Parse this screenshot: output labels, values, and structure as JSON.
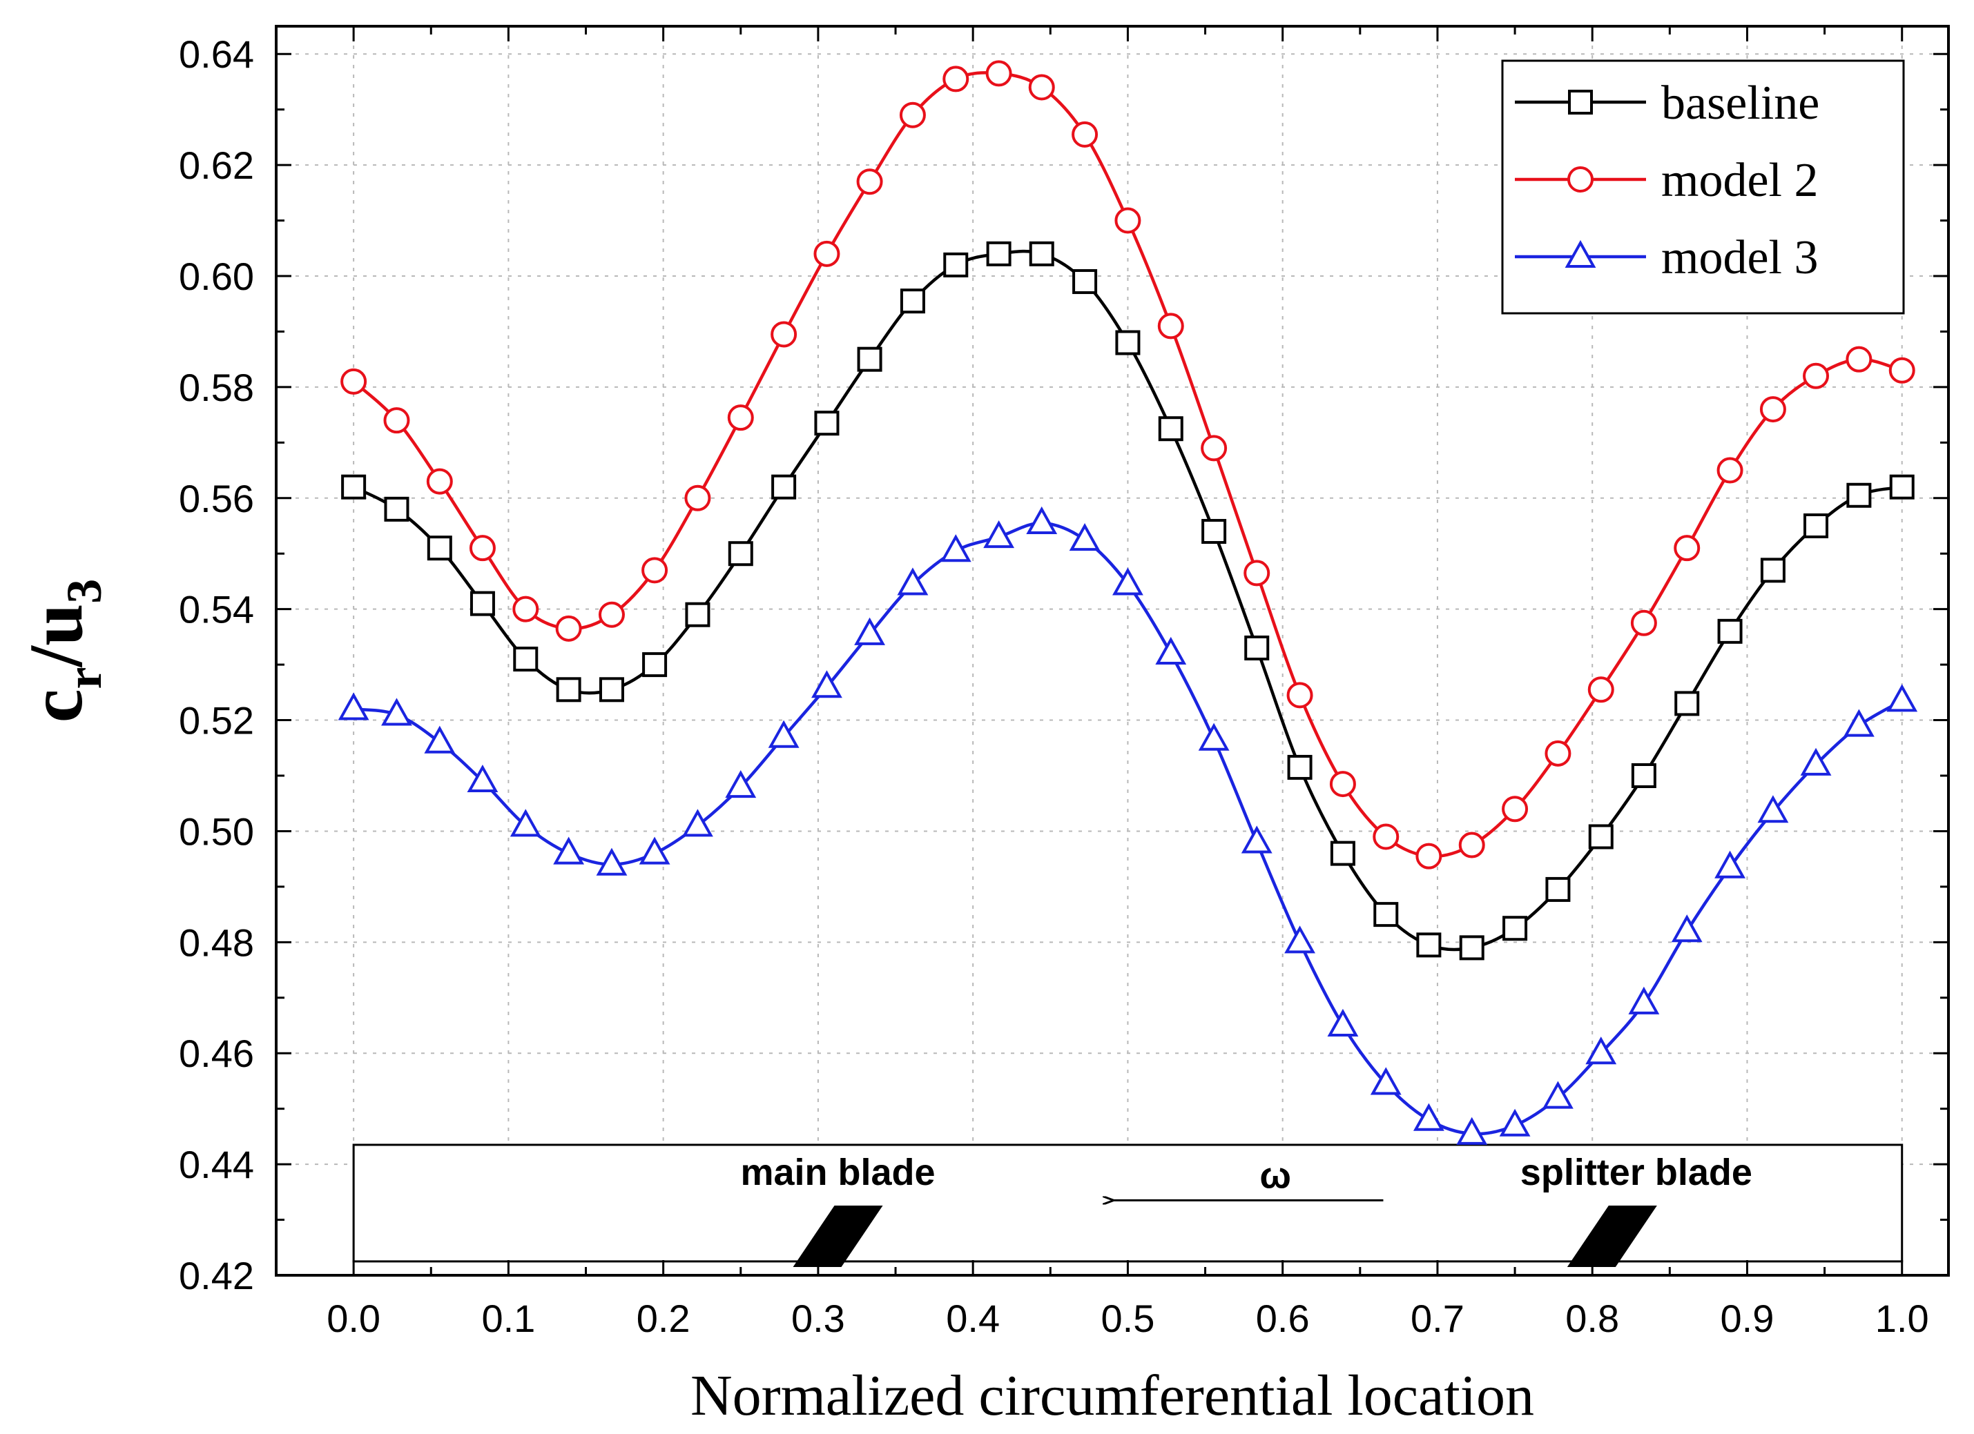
{
  "chart_data": {
    "type": "line",
    "title": "",
    "xlabel": "Normalized circumferential location",
    "ylabel": {
      "main": "c",
      "sub1": "r",
      "mid": "/u",
      "sub2": "3"
    },
    "xlim": [
      -0.05,
      1.03
    ],
    "ylim": [
      0.42,
      0.645
    ],
    "xticks": [
      "0.0",
      "0.1",
      "0.2",
      "0.3",
      "0.4",
      "0.5",
      "0.6",
      "0.7",
      "0.8",
      "0.9",
      "1.0"
    ],
    "yticks": [
      "0.42",
      "0.44",
      "0.46",
      "0.48",
      "0.50",
      "0.52",
      "0.54",
      "0.56",
      "0.58",
      "0.60",
      "0.62",
      "0.64"
    ],
    "grid": true,
    "legend_position": "top-right",
    "x": [
      0.0,
      0.0278,
      0.0556,
      0.0833,
      0.1111,
      0.1389,
      0.1667,
      0.1944,
      0.2222,
      0.25,
      0.2778,
      0.3056,
      0.3333,
      0.3611,
      0.3889,
      0.4167,
      0.4444,
      0.4722,
      0.5,
      0.5278,
      0.5556,
      0.5833,
      0.6111,
      0.6389,
      0.6667,
      0.6944,
      0.7222,
      0.75,
      0.7778,
      0.8056,
      0.8333,
      0.8611,
      0.8889,
      0.9167,
      0.9444,
      0.9722,
      1.0
    ],
    "series": [
      {
        "name": "baseline",
        "color": "#000000",
        "marker": "square",
        "values": [
          0.562,
          0.558,
          0.551,
          0.541,
          0.531,
          0.5255,
          0.5255,
          0.53,
          0.539,
          0.55,
          0.562,
          0.5735,
          0.585,
          0.5955,
          0.602,
          0.604,
          0.604,
          0.599,
          0.588,
          0.5725,
          0.554,
          0.533,
          0.5115,
          0.496,
          0.485,
          0.4795,
          0.479,
          0.4825,
          0.4895,
          0.499,
          0.51,
          0.523,
          0.536,
          0.547,
          0.555,
          0.5605,
          0.562
        ]
      },
      {
        "name": "model 2",
        "color": "#e8101a",
        "marker": "circle",
        "values": [
          0.581,
          0.574,
          0.563,
          0.551,
          0.54,
          0.5365,
          0.539,
          0.547,
          0.56,
          0.5745,
          0.5895,
          0.604,
          0.617,
          0.629,
          0.6355,
          0.6365,
          0.634,
          0.6255,
          0.61,
          0.591,
          0.569,
          0.5465,
          0.5245,
          0.5085,
          0.499,
          0.4955,
          0.4975,
          0.504,
          0.514,
          0.5255,
          0.5375,
          0.551,
          0.565,
          0.576,
          0.582,
          0.585,
          0.583
        ]
      },
      {
        "name": "model 3",
        "color": "#1a24e0",
        "marker": "triangle",
        "values": [
          0.522,
          0.521,
          0.516,
          0.509,
          0.501,
          0.496,
          0.494,
          0.496,
          0.501,
          0.508,
          0.517,
          0.526,
          0.5355,
          0.5445,
          0.5505,
          0.553,
          0.5555,
          0.5525,
          0.5445,
          0.532,
          0.5165,
          0.498,
          0.48,
          0.465,
          0.4545,
          0.448,
          0.4455,
          0.447,
          0.452,
          0.46,
          0.469,
          0.482,
          0.4935,
          0.5035,
          0.512,
          0.519,
          0.5235
        ]
      }
    ],
    "annotations": {
      "main_blade_label": "main blade",
      "splitter_blade_label": "splitter blade",
      "omega_label": "ω",
      "main_blade_x": 0.315,
      "splitter_blade_x": 0.815,
      "box_y_top": 0.4435,
      "box_y_bottom": 0.4225,
      "arrow_from_x": 0.665,
      "arrow_to_x": 0.49,
      "arrow_y": 0.4335
    }
  }
}
